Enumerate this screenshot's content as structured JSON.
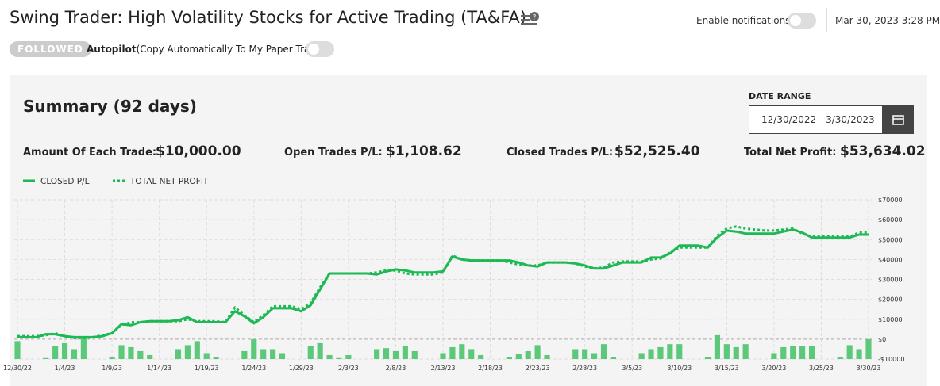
{
  "header": {
    "title": "Swing Trader: High Volatility Stocks for Active Trading (TA&FA)",
    "notifications": "Enable notifications",
    "timestamp": "Mar 30, 2023 3:28 PM",
    "badge": "FOLLOWED",
    "autopilot_label": "Autopilot",
    "autopilot_note": "(Copy Automatically To My Paper Trades)"
  },
  "summary": {
    "title": "Summary (92 days)",
    "date_range_label": "DATE RANGE",
    "date_range": "12/30/2022 - 3/30/2023",
    "stats": [
      {
        "label": "Amount Of Each Trade:",
        "value": "$10,000.00"
      },
      {
        "label": "Open Trades P/L:",
        "value": "$1,108.62"
      },
      {
        "label": "Closed Trades P/L:",
        "value": "$52,525.40"
      },
      {
        "label": "Total Net Profit:",
        "value": "$53,634.02"
      }
    ]
  },
  "chart_data": {
    "type": "line",
    "categories": [
      "12/30/22",
      null,
      null,
      null,
      null,
      "1/4/23",
      null,
      null,
      null,
      null,
      "1/9/23",
      null,
      null,
      null,
      null,
      "1/14/23",
      null,
      null,
      null,
      null,
      "1/19/23",
      null,
      null,
      null,
      null,
      "1/24/23",
      null,
      null,
      null,
      null,
      "1/29/23",
      null,
      null,
      null,
      null,
      "2/3/23",
      null,
      null,
      null,
      null,
      "2/8/23",
      null,
      null,
      null,
      null,
      "2/13/23",
      null,
      null,
      null,
      null,
      "2/18/23",
      null,
      null,
      null,
      null,
      "2/23/23",
      null,
      null,
      null,
      null,
      "2/28/23",
      null,
      null,
      null,
      null,
      "3/5/23",
      null,
      null,
      null,
      null,
      "3/10/23",
      null,
      null,
      null,
      null,
      "3/15/23",
      null,
      null,
      null,
      null,
      "3/20/23",
      null,
      null,
      null,
      null,
      "3/25/23",
      null,
      null,
      null,
      null,
      "3/30/23"
    ],
    "series": [
      {
        "name": "CLOSED P/L",
        "color": "#1db954",
        "style": "solid",
        "values": [
          1000,
          1000,
          1000,
          2500,
          2500,
          1500,
          1000,
          1000,
          1000,
          1500,
          3000,
          7500,
          7000,
          8500,
          9000,
          9000,
          9000,
          9500,
          11000,
          8500,
          8500,
          8500,
          8500,
          14000,
          11500,
          8000,
          11000,
          15500,
          15500,
          15500,
          14000,
          17000,
          25000,
          33000,
          33000,
          33000,
          33000,
          33000,
          32500,
          34000,
          35000,
          34500,
          33500,
          33500,
          33500,
          34000,
          41500,
          40000,
          39500,
          39500,
          39500,
          39500,
          39500,
          38500,
          37000,
          36500,
          38500,
          38500,
          38500,
          38000,
          37000,
          35500,
          35500,
          37000,
          38500,
          38500,
          38500,
          41000,
          41000,
          43000,
          47000,
          47000,
          47000,
          46000,
          51000,
          54500,
          54000,
          53000,
          53000,
          53000,
          53000,
          54000,
          55000,
          53500,
          51000,
          51000,
          51000,
          51000,
          51000,
          52500,
          52500
        ]
      },
      {
        "name": "TOTAL NET PROFIT",
        "color": "#1db954",
        "style": "dotted",
        "values": [
          1500,
          1500,
          1500,
          2000,
          3000,
          1500,
          500,
          500,
          1000,
          2000,
          3000,
          7000,
          8500,
          8500,
          9000,
          9000,
          9000,
          9000,
          10000,
          9000,
          9000,
          9000,
          8500,
          16000,
          12000,
          8500,
          12000,
          16500,
          16500,
          16500,
          15000,
          18000,
          26000,
          33000,
          33000,
          33000,
          33000,
          33000,
          33500,
          34500,
          34500,
          33000,
          32500,
          32500,
          32500,
          33500,
          42000,
          40000,
          39500,
          39500,
          39500,
          39500,
          38500,
          37500,
          37000,
          37000,
          38500,
          38500,
          38500,
          38000,
          36500,
          35500,
          36000,
          38500,
          39000,
          39000,
          39000,
          40000,
          40500,
          43500,
          46000,
          46000,
          46000,
          46000,
          52000,
          55500,
          56500,
          55500,
          55000,
          54500,
          54500,
          55000,
          55500,
          53000,
          51500,
          51500,
          51500,
          51500,
          51500,
          53500,
          53500
        ]
      }
    ],
    "bars": {
      "color": "#5cc97a",
      "values": [
        -1000,
        null,
        null,
        -9500,
        -3500,
        -2000,
        -5000,
        1000,
        null,
        null,
        -9000,
        -3000,
        -4000,
        -6000,
        -8000,
        null,
        null,
        -5000,
        -3000,
        -1000,
        -7000,
        -9000,
        null,
        null,
        -6000,
        0,
        -5000,
        -5000,
        -7000,
        null,
        null,
        -3500,
        -2000,
        -8000,
        -9500,
        -8000,
        null,
        null,
        -5000,
        -4500,
        -6000,
        -3500,
        -6000,
        null,
        null,
        -7000,
        -4000,
        -2500,
        -5000,
        -8000,
        null,
        null,
        -9000,
        -7500,
        -6000,
        -3000,
        -8000,
        null,
        null,
        -5000,
        -5000,
        -7000,
        -2500,
        -9000,
        null,
        null,
        -7000,
        -5000,
        -4000,
        -2500,
        -2500,
        null,
        null,
        -9000,
        2000,
        -2500,
        -4000,
        -2500,
        null,
        null,
        -7000,
        -4000,
        -3500,
        -3500,
        -3500,
        null,
        null,
        -9000,
        -3000,
        -5000,
        0
      ]
    },
    "ylim": [
      -10000,
      70000
    ],
    "yticks": [
      {
        "value": -10000,
        "label": "-$10000"
      },
      {
        "value": 0,
        "label": "$0"
      },
      {
        "value": 10000,
        "label": "$10000"
      },
      {
        "value": 20000,
        "label": "$20000"
      },
      {
        "value": 30000,
        "label": "$30000"
      },
      {
        "value": 40000,
        "label": "$40000"
      },
      {
        "value": 50000,
        "label": "$50000"
      },
      {
        "value": 60000,
        "label": "$60000"
      },
      {
        "value": 70000,
        "label": "$70000"
      }
    ],
    "grid": true
  }
}
